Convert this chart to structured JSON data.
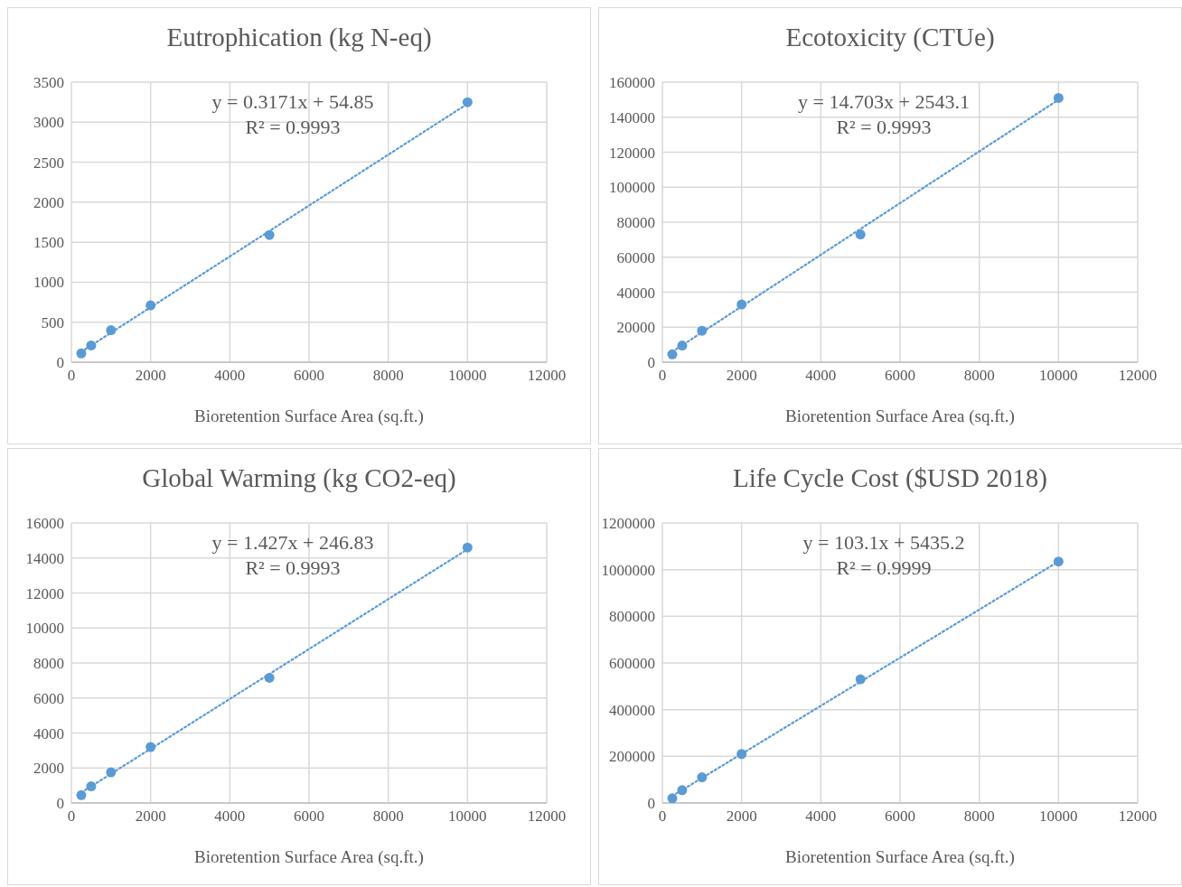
{
  "chart_data": [
    {
      "type": "scatter",
      "title": "Eutrophication (kg N-eq)",
      "xlabel": "Bioretention Surface Area (sq.ft.)",
      "xlim": [
        0,
        12000
      ],
      "xticks": [
        0,
        2000,
        4000,
        6000,
        8000,
        10000,
        12000
      ],
      "ylim": [
        0,
        3500
      ],
      "yticks": [
        0,
        500,
        1000,
        1500,
        2000,
        2500,
        3000,
        3500
      ],
      "grid": true,
      "legend": false,
      "marker": "circle",
      "annotations": [
        "y = 0.3171x + 54.85",
        "R² = 0.9993"
      ],
      "series": [
        {
          "type": "scatter",
          "color": "#5b9bd5",
          "x": [
            250,
            500,
            1000,
            2000,
            5000,
            10000
          ],
          "values": [
            110,
            210,
            400,
            710,
            1590,
            3250
          ]
        },
        {
          "type": "line",
          "color": "#5b9bd5",
          "line_style": "dotted",
          "marker": "none",
          "x": [
            250,
            10000
          ],
          "values": [
            130,
            3230
          ]
        }
      ]
    },
    {
      "type": "scatter",
      "title": "Ecotoxicity (CTUe)",
      "xlabel": "Bioretention Surface Area (sq.ft.)",
      "xlim": [
        0,
        12000
      ],
      "xticks": [
        0,
        2000,
        4000,
        6000,
        8000,
        10000,
        12000
      ],
      "ylim": [
        0,
        160000
      ],
      "yticks": [
        0,
        20000,
        40000,
        60000,
        80000,
        100000,
        120000,
        140000,
        160000
      ],
      "grid": true,
      "legend": false,
      "marker": "circle",
      "annotations": [
        "y = 14.703x + 2543.1",
        "R² = 0.9993"
      ],
      "series": [
        {
          "type": "scatter",
          "color": "#5b9bd5",
          "x": [
            250,
            500,
            1000,
            2000,
            5000,
            10000
          ],
          "values": [
            4500,
            9500,
            18000,
            33000,
            73000,
            151000
          ]
        },
        {
          "type": "line",
          "color": "#5b9bd5",
          "line_style": "dotted",
          "marker": "none",
          "x": [
            250,
            10000
          ],
          "values": [
            6000,
            150000
          ]
        }
      ]
    },
    {
      "type": "scatter",
      "title": "Global Warming (kg CO2-eq)",
      "xlabel": "Bioretention Surface Area (sq.ft.)",
      "xlim": [
        0,
        12000
      ],
      "xticks": [
        0,
        2000,
        4000,
        6000,
        8000,
        10000,
        12000
      ],
      "ylim": [
        0,
        16000
      ],
      "yticks": [
        0,
        2000,
        4000,
        6000,
        8000,
        10000,
        12000,
        14000,
        16000
      ],
      "grid": true,
      "legend": false,
      "marker": "circle",
      "annotations": [
        "y = 1.427x + 246.83",
        "R² = 0.9993"
      ],
      "series": [
        {
          "type": "scatter",
          "color": "#5b9bd5",
          "x": [
            250,
            500,
            1000,
            2000,
            5000,
            10000
          ],
          "values": [
            450,
            950,
            1750,
            3200,
            7150,
            14600
          ]
        },
        {
          "type": "line",
          "color": "#5b9bd5",
          "line_style": "dotted",
          "marker": "none",
          "x": [
            250,
            10000
          ],
          "values": [
            600,
            14500
          ]
        }
      ]
    },
    {
      "type": "scatter",
      "title": "Life Cycle Cost ($USD 2018)",
      "xlabel": "Bioretention Surface Area (sq.ft.)",
      "xlim": [
        0,
        12000
      ],
      "xticks": [
        0,
        2000,
        4000,
        6000,
        8000,
        10000,
        12000
      ],
      "ylim": [
        0,
        1200000
      ],
      "yticks": [
        0,
        200000,
        400000,
        600000,
        800000,
        1000000,
        1200000
      ],
      "grid": true,
      "legend": false,
      "marker": "circle",
      "annotations": [
        "y = 103.1x + 5435.2",
        "R² = 0.9999"
      ],
      "series": [
        {
          "type": "scatter",
          "color": "#5b9bd5",
          "x": [
            250,
            500,
            1000,
            2000,
            5000,
            10000
          ],
          "values": [
            20000,
            55000,
            110000,
            210000,
            530000,
            1035000
          ]
        },
        {
          "type": "line",
          "color": "#5b9bd5",
          "line_style": "dotted",
          "marker": "none",
          "x": [
            250,
            10000
          ],
          "values": [
            30000,
            1035000
          ]
        }
      ]
    }
  ]
}
